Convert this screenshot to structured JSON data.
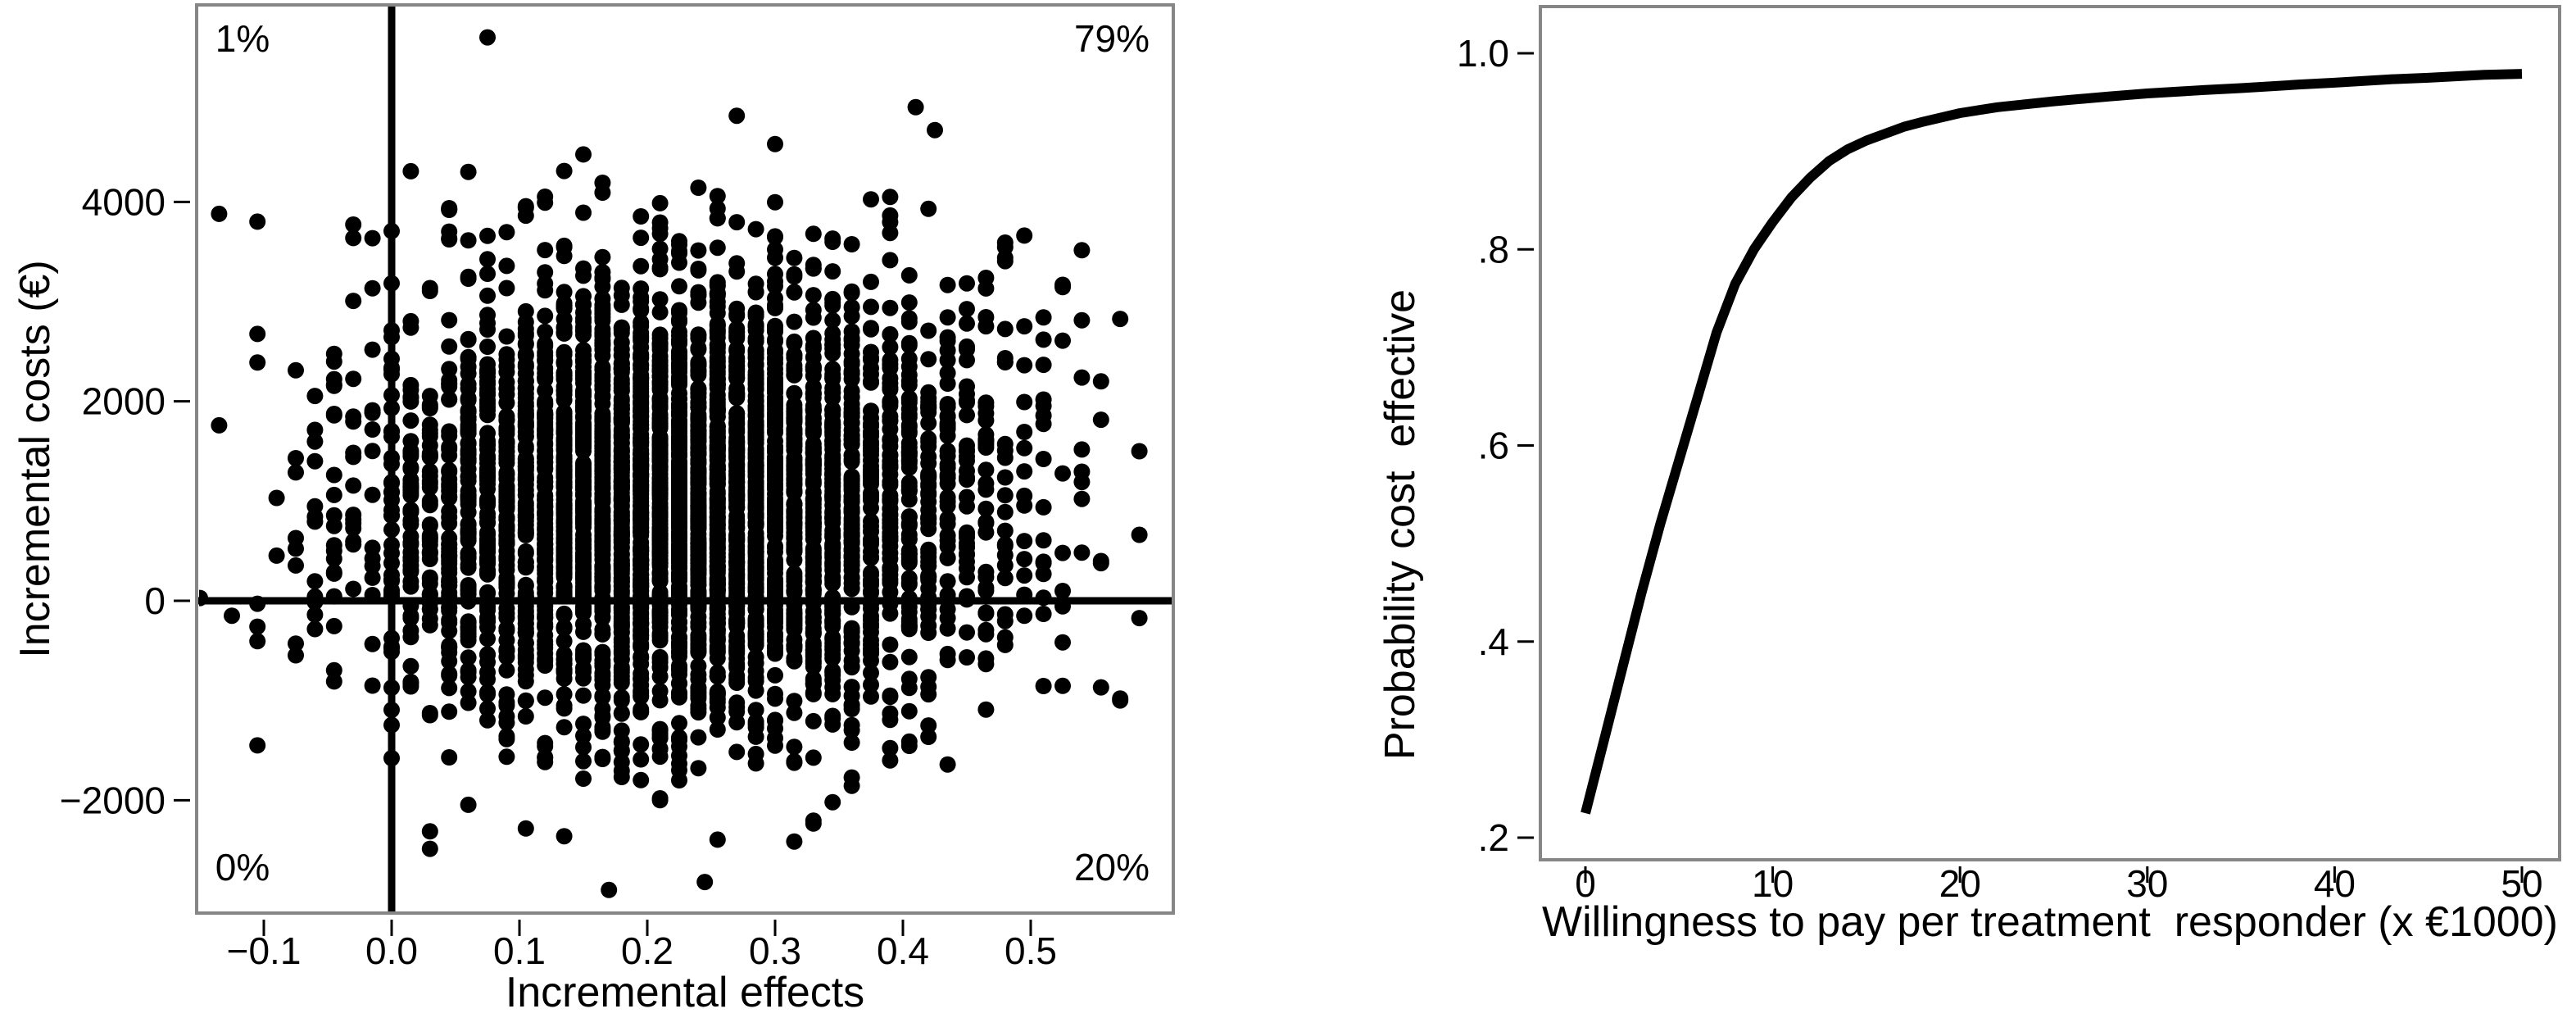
{
  "page": {
    "background_color": "#ffffff",
    "text_color": "#000000",
    "frame_color": "#868686",
    "description_left_panel": "cost-effectiveness plane scatter",
    "description_right_panel": "cost-effectiveness acceptability curve"
  },
  "chart_data": [
    {
      "type": "scatter",
      "xlabel": "Incremental effects",
      "ylabel": "Incremental costs (€)",
      "xlim": [
        -0.15,
        0.61
      ],
      "ylim": [
        -3130,
        5980
      ],
      "grid": false,
      "legend": false,
      "x_ticks": [
        {
          "value": -0.1,
          "label": "−0.1"
        },
        {
          "value": 0.0,
          "label": "0.0"
        },
        {
          "value": 0.1,
          "label": "0.1"
        },
        {
          "value": 0.2,
          "label": "0.2"
        },
        {
          "value": 0.3,
          "label": "0.3"
        },
        {
          "value": 0.4,
          "label": "0.4"
        },
        {
          "value": 0.5,
          "label": "0.5"
        }
      ],
      "y_ticks": [
        {
          "value": 4000,
          "label": "4000"
        },
        {
          "value": 2000,
          "label": "2000"
        },
        {
          "value": 0,
          "label": "0"
        },
        {
          "value": -2000,
          "label": "−2000"
        }
      ],
      "reference_lines": {
        "vertical_at_x": 0,
        "horizontal_at_y": 0
      },
      "quadrant_percentages": {
        "top_left": "1%",
        "top_right": "79%",
        "bottom_left": "0%",
        "bottom_right": "20%"
      },
      "point_color": "#000000",
      "point_radius_px": 10,
      "points_cloud": {
        "n": 4200,
        "note": "dense bootstrap cloud read from pixels; points fall in vertical columns",
        "x_mean": 0.228,
        "x_sd": 0.118,
        "x_grid_step": 0.015,
        "y_mean": 1000,
        "y_sd": 1100,
        "seed": 1337
      },
      "notable_points": [
        [
          0.075,
          5650
        ],
        [
          -0.135,
          3880
        ],
        [
          0.41,
          4950
        ],
        [
          0.425,
          4720
        ],
        [
          0.3,
          4580
        ],
        [
          0.17,
          -2900
        ],
        [
          0.245,
          -2820
        ],
        [
          0.57,
          -980
        ],
        [
          0.555,
          2200
        ],
        [
          0.585,
          1500
        ],
        [
          -0.125,
          -150
        ],
        [
          -0.105,
          -1450
        ]
      ]
    },
    {
      "type": "line",
      "xlabel": "Willingness to pay per treatment  responder (x €1000)",
      "ylabel": "Probability cost  effective",
      "xlim": [
        -2.4,
        52
      ],
      "ylim": [
        0.177,
        1.048
      ],
      "grid": false,
      "legend": false,
      "x_ticks": [
        {
          "value": 0,
          "label": "0"
        },
        {
          "value": 10,
          "label": "10"
        },
        {
          "value": 20,
          "label": "20"
        },
        {
          "value": 30,
          "label": "30"
        },
        {
          "value": 40,
          "label": "40"
        },
        {
          "value": 50,
          "label": "50"
        }
      ],
      "y_ticks": [
        {
          "value": 1.0,
          "label": "1.0"
        },
        {
          "value": 0.8,
          "label": ".8"
        },
        {
          "value": 0.6,
          "label": ".6"
        },
        {
          "value": 0.4,
          "label": ".4"
        },
        {
          "value": 0.2,
          "label": ".2"
        }
      ],
      "series": [
        {
          "name": "probability-cost-effective",
          "color": "#000000",
          "stroke_width_px": 12,
          "x": [
            0,
            1,
            2,
            3,
            4,
            5,
            6,
            7,
            8,
            9,
            10,
            11,
            12,
            13,
            14,
            15,
            16,
            17,
            18,
            20,
            22,
            25,
            28,
            30,
            33,
            35,
            38,
            40,
            43,
            45,
            48,
            50
          ],
          "y": [
            0.225,
            0.3,
            0.375,
            0.45,
            0.52,
            0.585,
            0.65,
            0.715,
            0.765,
            0.8,
            0.828,
            0.853,
            0.873,
            0.89,
            0.902,
            0.911,
            0.918,
            0.925,
            0.93,
            0.939,
            0.945,
            0.951,
            0.956,
            0.959,
            0.9625,
            0.9645,
            0.968,
            0.97,
            0.9735,
            0.975,
            0.978,
            0.979
          ]
        }
      ]
    }
  ]
}
